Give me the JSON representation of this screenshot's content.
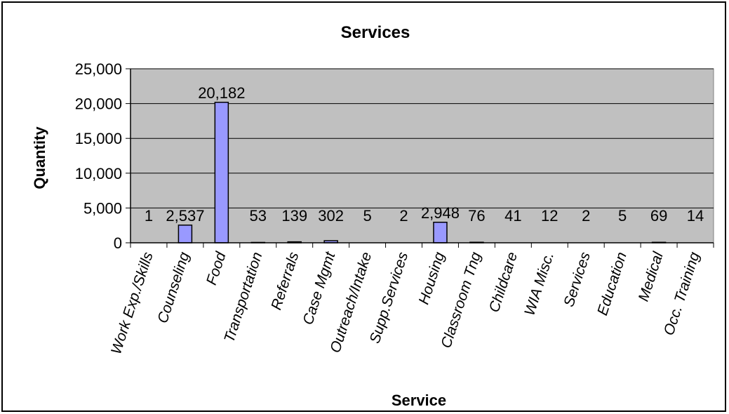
{
  "chart_data": {
    "type": "bar",
    "title": "Services",
    "xlabel": "Service",
    "ylabel": "Quantity",
    "ylim": [
      0,
      25000
    ],
    "yticks": [
      "0",
      "5,000",
      "10,000",
      "15,000",
      "20,000",
      "25,000"
    ],
    "grid": true,
    "legend": "none",
    "categories": [
      "Work Exp./Skills",
      "Counseling",
      "Food",
      "Transportation",
      "Referrals",
      "Case Mgmt",
      "Outreach/Intake",
      "Supp.Services",
      "Housing",
      "Classroom Tng",
      "Childcare",
      "WIA Misc.",
      "Services",
      "Education",
      "Medical",
      "Occ. Training"
    ],
    "values": [
      1,
      2537,
      20182,
      53,
      139,
      302,
      5,
      2,
      2948,
      76,
      41,
      12,
      2,
      5,
      69,
      14
    ],
    "data_labels": [
      "1",
      "2,537",
      "20,182",
      "53",
      "139",
      "302",
      "5",
      "2",
      "2,948",
      "76",
      "41",
      "12",
      "2",
      "5",
      "69",
      "14"
    ],
    "colors": {
      "plot_background": "#c0c0c0",
      "bar_fill": "#9999ff",
      "bar_stroke": "#000000",
      "gridline": "#000000"
    }
  }
}
